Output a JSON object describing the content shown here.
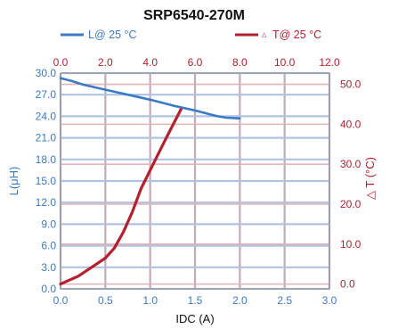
{
  "chart_data": {
    "type": "line",
    "title": "SRP6540-270M",
    "xlabel": "IDC (A)",
    "ylabel_left": "L(μH)",
    "ylabel_right": "△ T (°C)",
    "x_bottom_ticks": [
      "0.0",
      "0.5",
      "1.0",
      "1.5",
      "2.0",
      "2.5",
      "3.0"
    ],
    "x_top_ticks": [
      "0.0",
      "2.0",
      "4.0",
      "6.0",
      "8.0",
      "10.0",
      "12.0"
    ],
    "y_left_ticks": [
      "0.0",
      "3.0",
      "6.0",
      "9.0",
      "12.0",
      "15.0",
      "18.0",
      "21.0",
      "24.0",
      "27.0",
      "30.0"
    ],
    "y_right_ticks": [
      "0.0",
      "10.0",
      "20.0",
      "30.0",
      "40.0",
      "50.0"
    ],
    "x_bottom_range": [
      0,
      3
    ],
    "x_top_range": [
      0,
      12
    ],
    "y_left_range": [
      0,
      30
    ],
    "y_right_range": [
      -1.2,
      52.8
    ],
    "grid": true,
    "legend_position": "top",
    "colors": {
      "inductance": "#3a7bc4",
      "temperature": "#b3202e"
    },
    "series": [
      {
        "name": "L@ 25 °C",
        "axis": "top-left",
        "x": [
          0.0,
          0.5,
          1.0,
          2.0,
          3.0,
          4.0,
          5.0,
          6.0,
          7.0,
          7.4,
          8.0
        ],
        "y": [
          29.3,
          28.9,
          28.4,
          27.7,
          27.0,
          26.3,
          25.5,
          24.8,
          24.0,
          23.8,
          23.7
        ]
      },
      {
        "name": "T@ 25 °C",
        "axis": "bottom-right",
        "x": [
          0.0,
          0.1,
          0.2,
          0.3,
          0.4,
          0.5,
          0.6,
          0.7,
          0.8,
          0.9,
          1.0,
          1.1,
          1.2,
          1.35
        ],
        "y": [
          0.0,
          1.0,
          2.0,
          3.5,
          5.0,
          6.5,
          9.0,
          13.0,
          18.0,
          24.0,
          28.5,
          33.0,
          37.5,
          44.0
        ]
      }
    ]
  }
}
